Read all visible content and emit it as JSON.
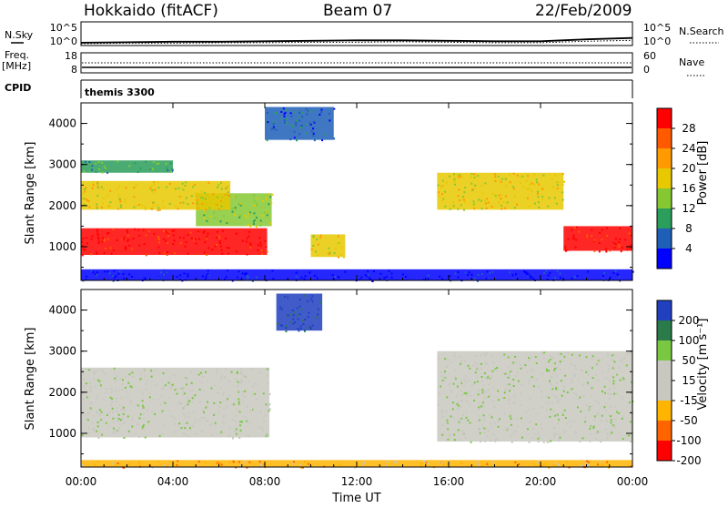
{
  "header": {
    "station": "Hokkaido (fitACF)",
    "beam": "Beam 07",
    "date": "22/Feb/2009"
  },
  "strip_labels": {
    "nsky": "N.Sky",
    "nsearch": "N.Search",
    "freq_top": "Freq.",
    "freq_unit": "[MHz]",
    "nave": "Nave",
    "cpid": "CPID",
    "cpid_value": "themis 3300"
  },
  "x_axis": {
    "label": "Time UT",
    "ticks": [
      "00:00",
      "04:00",
      "08:00",
      "12:00",
      "16:00",
      "20:00",
      "00:00"
    ]
  },
  "chart_data": [
    {
      "type": "line",
      "panel": "noise",
      "left_ticks": [
        "10^5",
        "10^0"
      ],
      "right_ticks": [
        "10^5",
        "10^0"
      ],
      "series": [
        {
          "name": "N.Sky",
          "x_hours": [
            0,
            2,
            4,
            6,
            8,
            10,
            12,
            14,
            16,
            18,
            20,
            22,
            24
          ],
          "values_log10": [
            0.6,
            0.7,
            0.8,
            0.8,
            0.9,
            1.0,
            1.1,
            1.1,
            1.0,
            0.9,
            0.9,
            1.3,
            1.6
          ]
        },
        {
          "name": "N.Search",
          "x_hours": [
            0,
            2,
            4,
            6,
            8,
            10,
            12,
            14,
            16,
            18,
            20,
            22,
            24
          ],
          "values_log10": [
            0.4,
            0.5,
            0.5,
            0.6,
            0.6,
            0.7,
            0.7,
            0.8,
            0.7,
            0.6,
            0.6,
            0.9,
            1.1
          ]
        }
      ]
    },
    {
      "type": "line",
      "panel": "frequency",
      "left_ticks": [
        "18",
        "8"
      ],
      "right_ticks": [
        "60",
        "0"
      ],
      "series": [
        {
          "name": "Freq.",
          "values_mhz": [
            10.5,
            10.5
          ]
        },
        {
          "name": "Nave",
          "values": [
            28,
            28
          ]
        }
      ]
    },
    {
      "type": "heatmap",
      "panel": "power",
      "ylabel": "Slant Range [km]",
      "yticks": [
        1000,
        2000,
        3000,
        4000
      ],
      "ylim": [
        180,
        4500
      ],
      "xlim_hours": [
        0,
        24
      ],
      "colorbar_label": "Power [dB]",
      "colorbar_ticks": [
        "28",
        "24",
        "20",
        "16",
        "12",
        "8",
        "4"
      ],
      "colorbar_colors": [
        "#ff0000",
        "#ff5a00",
        "#ff9a00",
        "#e8c800",
        "#86c832",
        "#2a9e5a",
        "#1f5fb8",
        "#0000ff"
      ],
      "regions": [
        {
          "t": [
            0,
            8.1
          ],
          "r": [
            800,
            1450
          ],
          "level": 0
        },
        {
          "t": [
            5,
            8.3
          ],
          "r": [
            1500,
            2300
          ],
          "level": 4
        },
        {
          "t": [
            0,
            6.5
          ],
          "r": [
            1900,
            2600
          ],
          "level": 3
        },
        {
          "t": [
            0,
            4
          ],
          "r": [
            2800,
            3100
          ],
          "level": 5
        },
        {
          "t": [
            8,
            11
          ],
          "r": [
            3600,
            4400
          ],
          "level": 6
        },
        {
          "t": [
            10,
            11.5
          ],
          "r": [
            750,
            1300
          ],
          "level": 3
        },
        {
          "t": [
            15.5,
            21
          ],
          "r": [
            1900,
            2800
          ],
          "level": 3
        },
        {
          "t": [
            21,
            24
          ],
          "r": [
            900,
            1500
          ],
          "level": 0
        },
        {
          "t": [
            0,
            24
          ],
          "r": [
            180,
            450
          ],
          "level": 7
        }
      ]
    },
    {
      "type": "heatmap",
      "panel": "velocity",
      "ylabel": "Slant Range [km]",
      "yticks": [
        1000,
        2000,
        3000,
        4000
      ],
      "ylim": [
        180,
        4500
      ],
      "xlim_hours": [
        0,
        24
      ],
      "colorbar_label": "Velocity [m s⁻¹]",
      "colorbar_ticks": [
        "200",
        "100",
        "50",
        "15",
        "-15",
        "-50",
        "-100",
        "-200"
      ],
      "colorbar_colors": [
        "#2040c0",
        "#2a7a4a",
        "#7ac842",
        "#c8c8c0",
        "#c8c8c0",
        "#ffb400",
        "#ff6400",
        "#ff0000"
      ],
      "regions": [
        {
          "t": [
            0,
            8.2
          ],
          "r": [
            900,
            2600
          ],
          "level": 3
        },
        {
          "t": [
            8.5,
            10.5
          ],
          "r": [
            3500,
            4400
          ],
          "level": 0
        },
        {
          "t": [
            15.5,
            24
          ],
          "r": [
            800,
            3000
          ],
          "level": 3
        },
        {
          "t": [
            0,
            24
          ],
          "r": [
            180,
            350
          ],
          "level": 5
        }
      ]
    }
  ]
}
